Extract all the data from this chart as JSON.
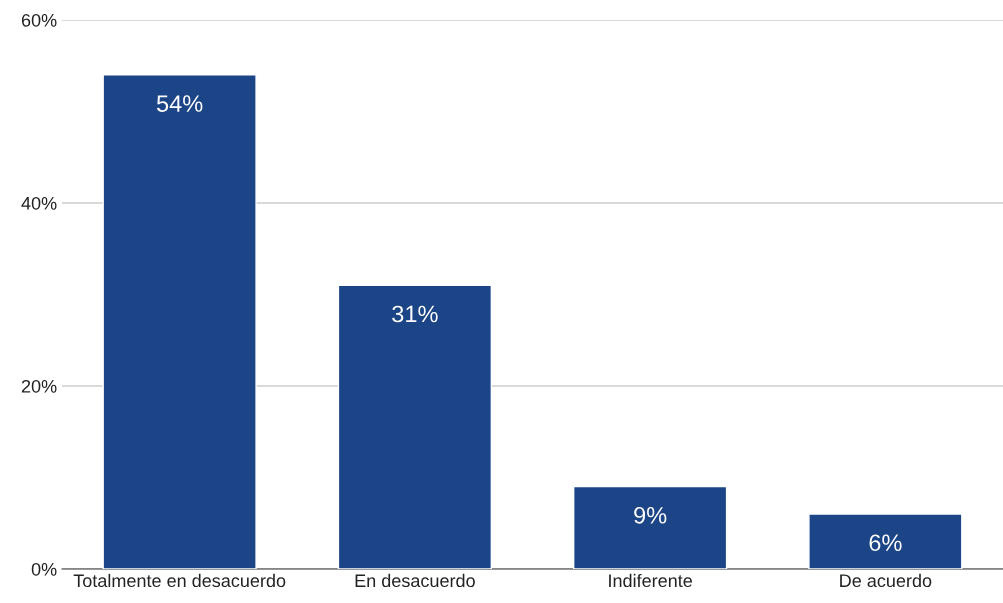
{
  "chart_data": {
    "type": "bar",
    "categories": [
      "Totalmente en desacuerdo",
      "En desacuerdo",
      "Indiferente",
      "De acuerdo"
    ],
    "values": [
      54,
      31,
      9,
      6
    ],
    "value_labels": [
      "54%",
      "31%",
      "9%",
      "6%"
    ],
    "color": "#1c4587",
    "ylim": [
      0,
      60
    ],
    "yticks": [
      {
        "value": 0,
        "label": "0%"
      },
      {
        "value": 20,
        "label": "20%"
      },
      {
        "value": 40,
        "label": "40%"
      },
      {
        "value": 60,
        "label": "60%"
      }
    ],
    "grid": "y"
  }
}
